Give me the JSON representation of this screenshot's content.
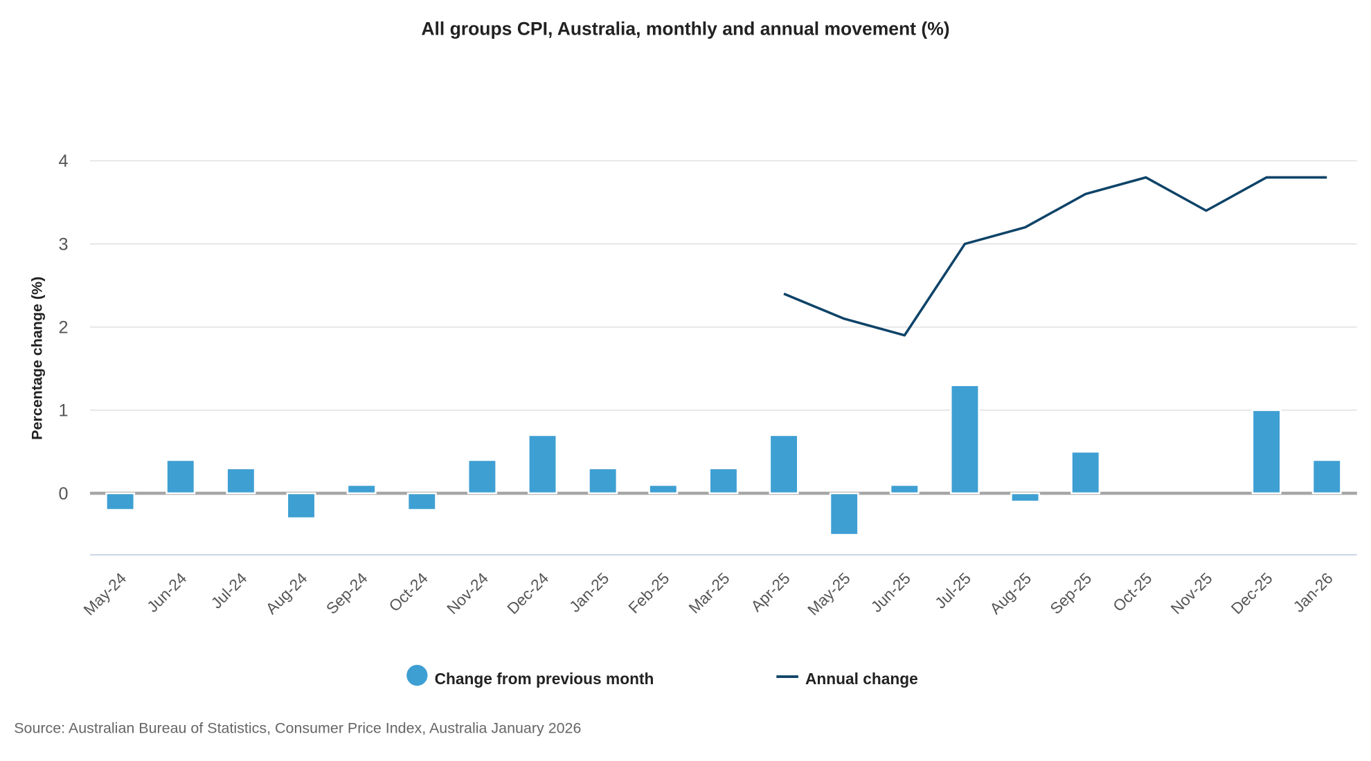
{
  "chart_data": {
    "type": "bar+line",
    "title": "All groups CPI, Australia, monthly and annual movement (%)",
    "ylabel": "Percentage change (%)",
    "xlabel": "",
    "ylim": [
      -0.74,
      4
    ],
    "yticks": [
      0,
      1,
      2,
      3,
      4
    ],
    "grid": true,
    "legend_placement": "bottom",
    "categories": [
      "May-24",
      "Jun-24",
      "Jul-24",
      "Aug-24",
      "Sep-24",
      "Oct-24",
      "Nov-24",
      "Dec-24",
      "Jan-25",
      "Feb-25",
      "Mar-25",
      "Apr-25",
      "May-25",
      "Jun-25",
      "Jul-25",
      "Aug-25",
      "Sep-25",
      "Oct-25",
      "Nov-25",
      "Dec-25",
      "Jan-26"
    ],
    "series": [
      {
        "name": "Change from previous month",
        "type": "bar",
        "color": "#3e9fd3",
        "values": [
          -0.2,
          0.4,
          0.3,
          -0.3,
          0.1,
          -0.2,
          0.4,
          0.7,
          0.3,
          0.1,
          0.3,
          0.7,
          -0.5,
          0.1,
          1.3,
          -0.1,
          0.5,
          0.0,
          0.0,
          1.0,
          0.4
        ]
      },
      {
        "name": "Annual change",
        "type": "line",
        "color": "#0e4368",
        "values": [
          null,
          null,
          null,
          null,
          null,
          null,
          null,
          null,
          null,
          null,
          null,
          2.4,
          2.1,
          1.9,
          3.0,
          3.2,
          3.6,
          3.8,
          3.4,
          3.8,
          3.8
        ]
      }
    ]
  },
  "source": "Source: Australian Bureau of Statistics, Consumer Price Index, Australia January 2026"
}
